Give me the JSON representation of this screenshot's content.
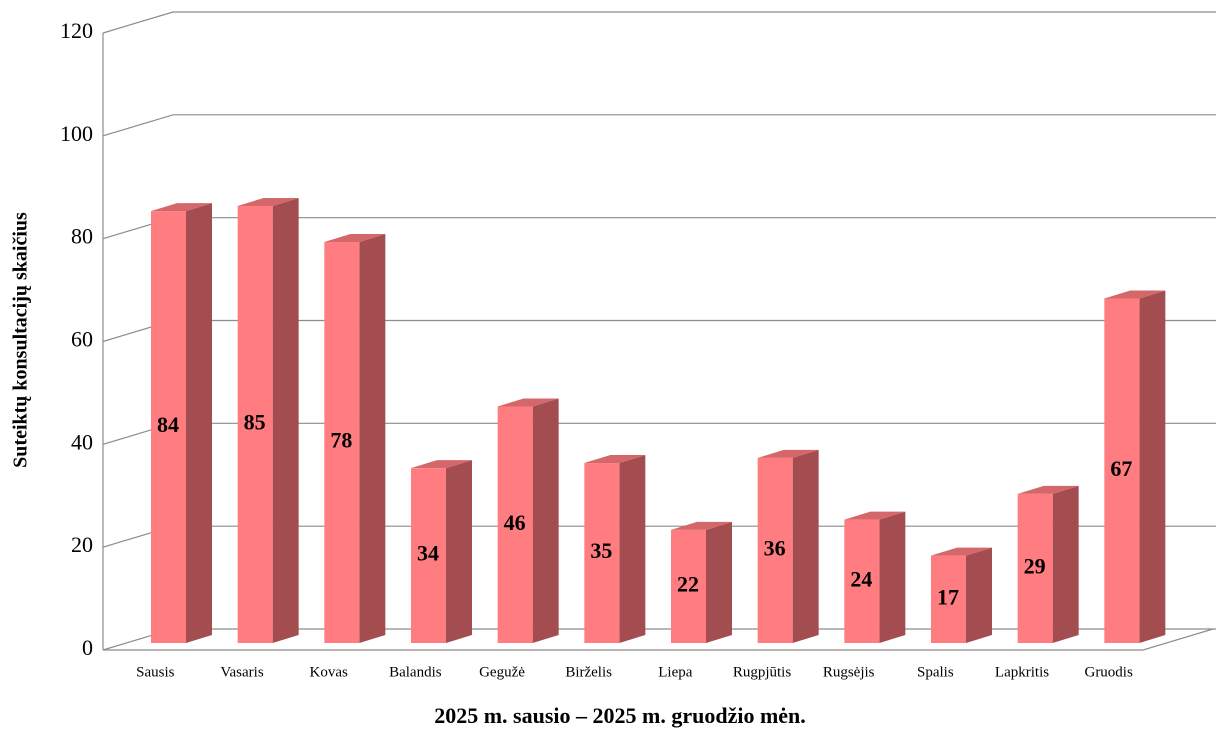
{
  "chart_data": {
    "type": "bar3d",
    "x_label": "2025 m. sausio – 2025 m. gruodžio mėn.",
    "y_label": "Suteiktų konsultacijų skaičius",
    "categories": [
      "Sausis",
      "Vasaris",
      "Kovas",
      "Balandis",
      "Gegužė",
      "Birželis",
      "Liepa",
      "Rugpjūtis",
      "Rugsėjis",
      "Spalis",
      "Lapkritis",
      "Gruodis"
    ],
    "values": [
      84,
      85,
      78,
      34,
      46,
      35,
      22,
      36,
      24,
      17,
      29,
      67
    ],
    "color": "#ff7c80",
    "ylim": [
      0,
      120
    ],
    "yticks": [
      0,
      20,
      40,
      60,
      80,
      100,
      120
    ],
    "grid": true
  }
}
